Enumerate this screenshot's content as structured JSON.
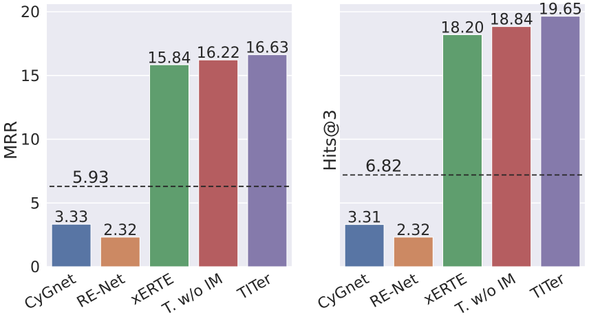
{
  "chart_data": [
    {
      "type": "bar",
      "categories": [
        "CyGnet",
        "RE-Net",
        "xERTE",
        "T. w/o IM",
        "TITer"
      ],
      "values": [
        3.33,
        2.32,
        15.84,
        16.22,
        16.63
      ],
      "value_labels": [
        "3.33",
        "2.32",
        "15.84",
        "16.22",
        "16.63"
      ],
      "colors": [
        "#5875a4",
        "#cc8963",
        "#5f9e6e",
        "#b55d60",
        "#857aab"
      ],
      "ylabel": "MRR",
      "ylim": [
        0,
        20.6
      ],
      "yticks": [
        0,
        5,
        10,
        15,
        20
      ],
      "grid": true,
      "reference_line": {
        "value": 6.3,
        "label": "5.93",
        "style": "dashed"
      }
    },
    {
      "type": "bar",
      "categories": [
        "CyGnet",
        "RE-Net",
        "xERTE",
        "T. w/o IM",
        "TITer"
      ],
      "values": [
        3.31,
        2.32,
        18.2,
        18.84,
        19.65
      ],
      "value_labels": [
        "3.31",
        "2.32",
        "18.20",
        "18.84",
        "19.65"
      ],
      "colors": [
        "#5875a4",
        "#cc8963",
        "#5f9e6e",
        "#b55d60",
        "#857aab"
      ],
      "ylabel": "Hits@3",
      "ylim": [
        0,
        20.6
      ],
      "yticks": [
        0,
        5,
        10,
        15,
        20
      ],
      "show_ytick_labels": false,
      "grid": true,
      "reference_line": {
        "value": 7.2,
        "label": "6.82",
        "style": "dashed"
      }
    }
  ]
}
